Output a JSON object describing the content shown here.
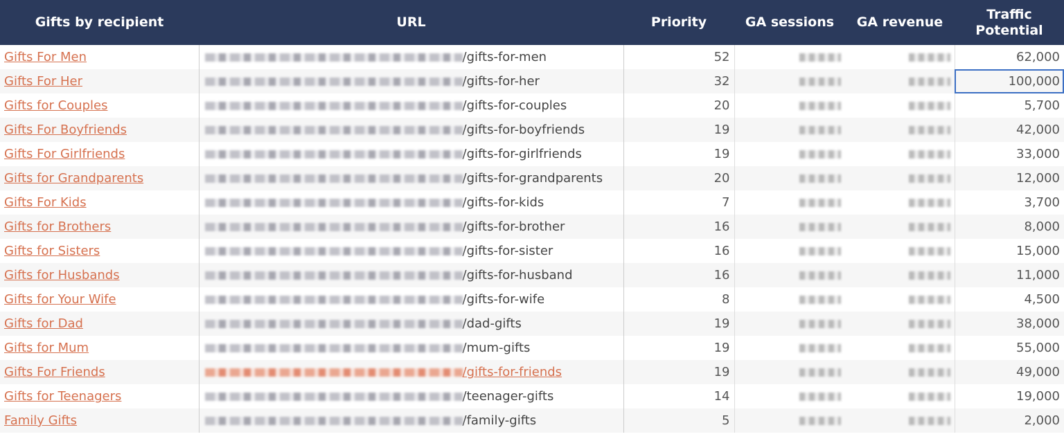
{
  "headers": [
    "Gifts by recipient",
    "URL",
    "Priority",
    "GA sessions",
    "GA revenue",
    "Traffic Potential"
  ],
  "rows": [
    {
      "name": "Gifts For Men",
      "path": "/gifts-for-men",
      "priority": "52",
      "traffic": "62,000"
    },
    {
      "name": "Gifts For Her",
      "path": "/gifts-for-her",
      "priority": "32",
      "traffic": "100,000"
    },
    {
      "name": "Gifts for Couples",
      "path": "/gifts-for-couples",
      "priority": "20",
      "traffic": "5,700"
    },
    {
      "name": "Gifts For Boyfriends",
      "path": "/gifts-for-boyfriends",
      "priority": "19",
      "traffic": "42,000"
    },
    {
      "name": "Gifts For Girlfriends",
      "path": "/gifts-for-girlfriends",
      "priority": "19",
      "traffic": "33,000"
    },
    {
      "name": "Gifts for Grandparents",
      "path": "/gifts-for-grandparents",
      "priority": "20",
      "traffic": "12,000"
    },
    {
      "name": "Gifts For Kids",
      "path": "/gifts-for-kids",
      "priority": "7",
      "traffic": "3,700"
    },
    {
      "name": "Gifts for Brothers",
      "path": "/gifts-for-brother",
      "priority": "16",
      "traffic": "8,000"
    },
    {
      "name": "Gifts for Sisters",
      "path": "/gifts-for-sister",
      "priority": "16",
      "traffic": "15,000"
    },
    {
      "name": "Gifts for Husbands",
      "path": "/gifts-for-husband",
      "priority": "16",
      "traffic": "11,000"
    },
    {
      "name": "Gifts for Your Wife",
      "path": "/gifts-for-wife",
      "priority": "8",
      "traffic": "4,500"
    },
    {
      "name": "Gifts for Dad",
      "path": "/dad-gifts",
      "priority": "19",
      "traffic": "38,000"
    },
    {
      "name": "Gifts for Mum",
      "path": "/mum-gifts",
      "priority": "19",
      "traffic": "55,000"
    },
    {
      "name": "Gifts For Friends",
      "path": "/gifts-for-friends",
      "priority": "19",
      "traffic": "49,000"
    },
    {
      "name": "Gifts for Teenagers",
      "path": "/teenager-gifts",
      "priority": "14",
      "traffic": "19,000"
    },
    {
      "name": "Family Gifts",
      "path": "/family-gifts",
      "priority": "5",
      "traffic": "2,000"
    }
  ]
}
